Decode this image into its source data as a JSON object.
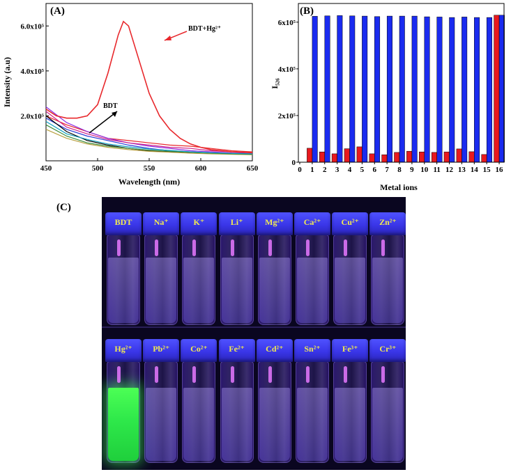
{
  "panels": {
    "a": "(A)",
    "b": "(B)",
    "c": "(C)"
  },
  "chart_data": [
    {
      "type": "line",
      "panel": "(A)",
      "xlabel": "Wavelength (nm)",
      "ylabel": "Intensity (a.u)",
      "xlim": [
        450,
        650
      ],
      "ylim": [
        0,
        700000
      ],
      "xticks": [
        "450",
        "500",
        "550",
        "600",
        "650"
      ],
      "yticks": [
        "2.0x10⁵",
        "4.0x10⁵",
        "6.0x10⁵"
      ],
      "annotations": [
        "BDT+Hg²⁺",
        "BDT"
      ],
      "series": [
        {
          "color": "#e8282c",
          "x": [
            450,
            460,
            470,
            480,
            490,
            500,
            510,
            520,
            525,
            530,
            540,
            550,
            560,
            570,
            580,
            590,
            600,
            610,
            620,
            630,
            640,
            650
          ],
          "y": [
            230000,
            200000,
            190000,
            190000,
            200000,
            250000,
            390000,
            560000,
            620000,
            600000,
            450000,
            300000,
            200000,
            140000,
            100000,
            75000,
            60000,
            50000,
            45000,
            40000,
            38000,
            36000
          ]
        },
        {
          "color": "#e8282c",
          "x": [
            450,
            470,
            490,
            510,
            530,
            550,
            570,
            590,
            610,
            630,
            650
          ],
          "y": [
            200000,
            160000,
            130000,
            100000,
            90000,
            80000,
            70000,
            65000,
            55000,
            45000,
            40000
          ]
        },
        {
          "color": "#8a2be2",
          "x": [
            450,
            470,
            490,
            510,
            530,
            550,
            570,
            590,
            610,
            630,
            650
          ],
          "y": [
            240000,
            170000,
            130000,
            100000,
            80000,
            65000,
            55000,
            45000,
            40000,
            35000,
            33000
          ]
        },
        {
          "color": "#d0208a",
          "x": [
            450,
            470,
            490,
            510,
            530,
            550,
            570,
            590,
            610,
            630,
            650
          ],
          "y": [
            220000,
            150000,
            120000,
            95000,
            80000,
            70000,
            60000,
            55000,
            45000,
            40000,
            35000
          ]
        },
        {
          "color": "#2b3bd6",
          "x": [
            450,
            470,
            490,
            510,
            530,
            550,
            570,
            590,
            610,
            630,
            650
          ],
          "y": [
            190000,
            140000,
            110000,
            90000,
            70000,
            55000,
            45000,
            40000,
            35000,
            32000,
            30000
          ]
        },
        {
          "color": "#000000",
          "x": [
            450,
            470,
            490,
            510,
            530,
            550,
            570,
            590,
            610,
            630,
            650
          ],
          "y": [
            200000,
            130000,
            90000,
            70000,
            55000,
            45000,
            40000,
            35000,
            32000,
            30000,
            28000
          ]
        },
        {
          "color": "#b8a040",
          "x": [
            450,
            470,
            490,
            510,
            530,
            550,
            570,
            590,
            610,
            630,
            650
          ],
          "y": [
            140000,
            100000,
            75000,
            60000,
            50000,
            42000,
            38000,
            34000,
            31000,
            29000,
            27000
          ]
        },
        {
          "color": "#3c8c3c",
          "x": [
            450,
            470,
            490,
            510,
            530,
            550,
            570,
            590,
            610,
            630,
            650
          ],
          "y": [
            160000,
            110000,
            80000,
            65000,
            55000,
            47000,
            42000,
            38000,
            34000,
            31000,
            29000
          ]
        },
        {
          "color": "#0f9fbf",
          "x": [
            450,
            470,
            490,
            510,
            530,
            550,
            570,
            590,
            610,
            630,
            650
          ],
          "y": [
            175000,
            120000,
            95000,
            75000,
            62000,
            52000,
            46000,
            40000,
            36000,
            33000,
            31000
          ]
        }
      ]
    },
    {
      "type": "bar",
      "panel": "(B)",
      "xlabel": "Metal ions",
      "ylabel": "I₅₂₆",
      "ylim": [
        0,
        680000
      ],
      "xticks": [
        "0",
        "1",
        "2",
        "3",
        "4",
        "5",
        "6",
        "7",
        "8",
        "9",
        "10",
        "11",
        "12",
        "13",
        "14",
        "15",
        "16"
      ],
      "yticks": [
        "0",
        "2x10⁵",
        "4x10⁵",
        "6x10⁵"
      ],
      "categories": [
        1,
        2,
        3,
        4,
        5,
        6,
        7,
        8,
        9,
        10,
        11,
        12,
        13,
        14,
        15,
        16
      ],
      "series": [
        {
          "color": "#e8191e",
          "values": [
            60000,
            44000,
            36000,
            58000,
            66000,
            36000,
            32000,
            42000,
            47000,
            44000,
            42000,
            44000,
            57000,
            45000,
            33000,
            630000
          ]
        },
        {
          "color": "#1a2bef",
          "values": [
            625000,
            627000,
            628000,
            627000,
            626000,
            624000,
            626000,
            626000,
            626000,
            623000,
            622000,
            620000,
            622000,
            620000,
            620000,
            630000
          ]
        }
      ]
    }
  ],
  "photo": {
    "top_row": [
      "BDT",
      "Na⁺",
      "K⁺",
      "Li⁺",
      "Mg²⁺",
      "Ca²⁺",
      "Cu²⁺",
      "Zn²⁺"
    ],
    "bottom_row": [
      "Hg²⁺",
      "Pb²⁺",
      "Co²⁺",
      "Fe²⁺",
      "Cd²⁺",
      "Sn²⁺",
      "Fe³⁺",
      "Cr³⁺"
    ],
    "glowing_vial": "Hg²⁺",
    "glow_color": "#3cff4a",
    "cap_color": "#4348f5"
  }
}
